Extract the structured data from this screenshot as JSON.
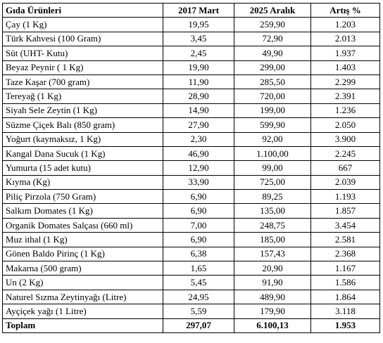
{
  "table": {
    "headers": [
      "Gıda Ürünleri",
      "2017 Mart",
      "2025 Aralık",
      "Artış %"
    ],
    "rows": [
      [
        "Çay (1 Kg)",
        "19,95",
        "259,90",
        "1.203"
      ],
      [
        "Türk Kahvesi (100 Gram)",
        "3,45",
        "72,90",
        "2.013"
      ],
      [
        "Süt (UHT- Kutu)",
        "2,45",
        "49,90",
        "1.937"
      ],
      [
        "Beyaz Peynir ( 1 Kg)",
        "19,90",
        "299,00",
        "1.403"
      ],
      [
        "Taze Kaşar (700 gram)",
        "11,90",
        "285,50",
        "2.299"
      ],
      [
        "Tereyağ (1 Kg)",
        "28,90",
        "720,00",
        "2.391"
      ],
      [
        "Siyah Sele Zeytin (1 Kg)",
        "14,90",
        "199,00",
        "1.236"
      ],
      [
        "Süzme Çiçek Balı (850 gram)",
        "27,90",
        "599,90",
        "2.050"
      ],
      [
        "Yoğurt (kaymaksız, 1 Kg)",
        "2,30",
        "92,00",
        "3.900"
      ],
      [
        "Kangal Dana Sucuk (1 Kg)",
        "46,90",
        "1.100,00",
        "2.245"
      ],
      [
        "Yumurta (15 adet kutu)",
        "12,90",
        "99,00",
        "667"
      ],
      [
        "Kıyma (Kg)",
        "33,90",
        "725,00",
        "2.039"
      ],
      [
        "Piliç Pirzola (750 Gram)",
        "6,90",
        "89,25",
        "1.193"
      ],
      [
        "Salkım Domates (1 Kg)",
        "6,90",
        "135,00",
        "1.857"
      ],
      [
        "Organik Domates Salçası (660 ml)",
        "7,00",
        "248,75",
        "3.454"
      ],
      [
        "Muz ithal (1 Kg)",
        "6,90",
        "185,00",
        "2.581"
      ],
      [
        "Gönen Baldo Pirinç (1 Kg)",
        "6,38",
        "157,43",
        "2.368"
      ],
      [
        "Makarna (500 gram)",
        "1,65",
        "20,90",
        "1.167"
      ],
      [
        "Un (2 Kg)",
        "5,45",
        "91,90",
        "1.586"
      ],
      [
        "Naturel Sızma Zeytinyağı (Litre)",
        "24,95",
        "489,90",
        "1.864"
      ],
      [
        "Ayçiçek yağı (1 Litre)",
        "5,59",
        "179,90",
        "3.118"
      ]
    ],
    "total": [
      "Toplam",
      "297,07",
      "6.100,13",
      "1.953"
    ]
  }
}
